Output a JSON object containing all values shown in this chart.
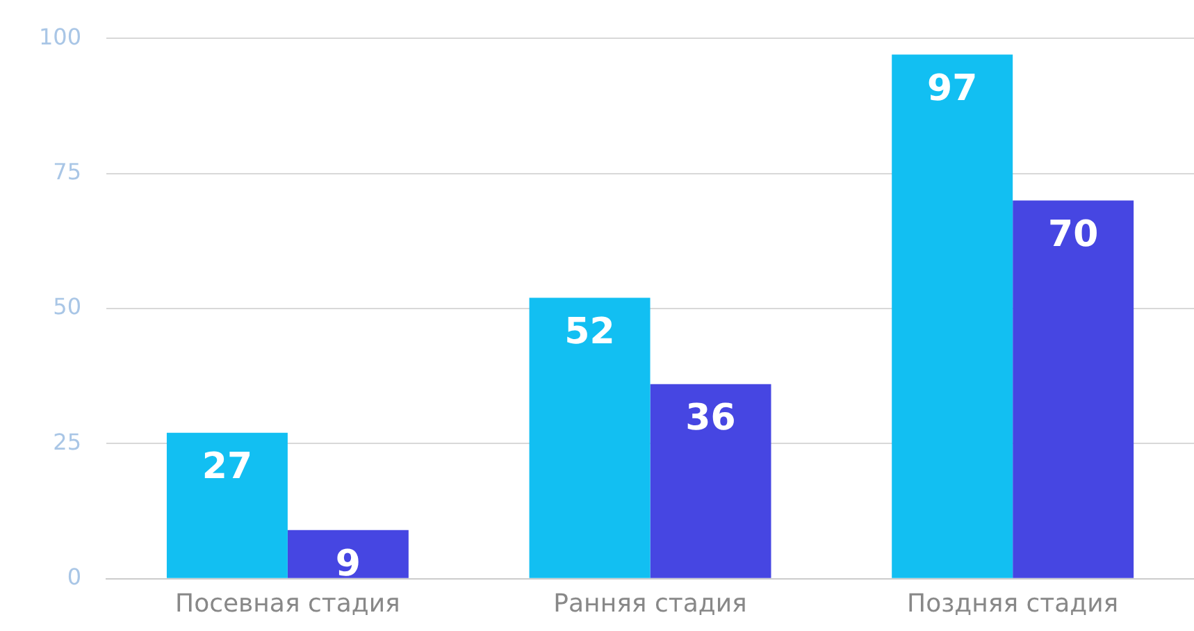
{
  "chart_data": {
    "type": "bar",
    "categories": [
      "Посевная стадия",
      "Ранняя стадия",
      "Поздняя стадия"
    ],
    "series": [
      {
        "color": "#12bff2",
        "values": [
          27,
          52,
          97
        ]
      },
      {
        "color": "#4646e2",
        "values": [
          9,
          36,
          70
        ]
      }
    ],
    "ylim": [
      0,
      100
    ],
    "yticks": [
      0,
      25,
      50,
      75,
      100
    ],
    "grid": "y",
    "legend": false,
    "data_labels": true
  }
}
